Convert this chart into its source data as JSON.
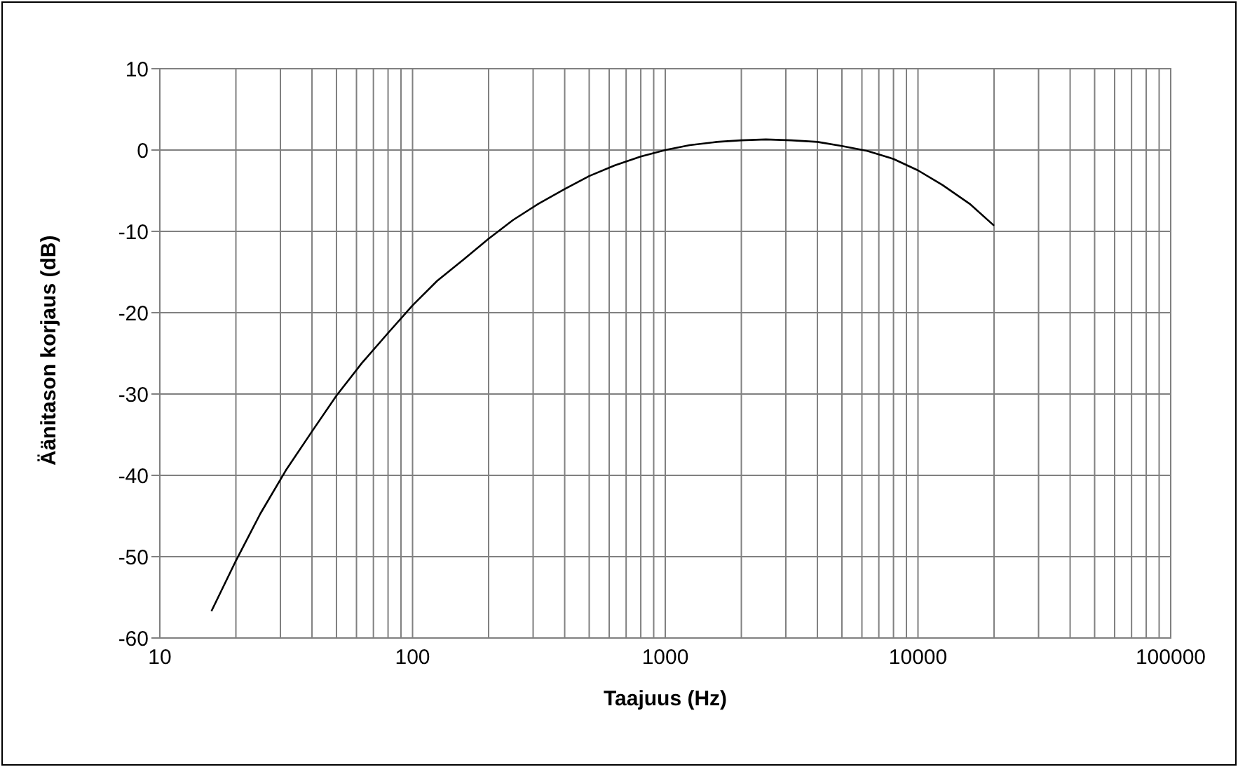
{
  "chart_data": {
    "type": "line",
    "xlabel": "Taajuus (Hz)",
    "ylabel": "Äänitason korjaus (dB)",
    "log": "x",
    "grid": true,
    "marker": "none",
    "line_style": "solid",
    "xlim": [
      10,
      100000
    ],
    "xticks": [
      10,
      {
        "value": 20,
        "label": null
      },
      {
        "value": 30,
        "label": null
      },
      {
        "value": 40,
        "label": null
      },
      {
        "value": 50,
        "label": null
      },
      {
        "value": 60,
        "label": null
      },
      {
        "value": 70,
        "label": null
      },
      {
        "value": 80,
        "label": null
      },
      {
        "value": 90,
        "label": null
      },
      100,
      {
        "value": 200,
        "label": null
      },
      {
        "value": 300,
        "label": null
      },
      {
        "value": 400,
        "label": null
      },
      {
        "value": 500,
        "label": null
      },
      {
        "value": 600,
        "label": null
      },
      {
        "value": 700,
        "label": null
      },
      {
        "value": 800,
        "label": null
      },
      {
        "value": 900,
        "label": null
      },
      1000,
      {
        "value": 2000,
        "label": null
      },
      {
        "value": 3000,
        "label": null
      },
      {
        "value": 4000,
        "label": null
      },
      {
        "value": 5000,
        "label": null
      },
      {
        "value": 6000,
        "label": null
      },
      {
        "value": 7000,
        "label": null
      },
      {
        "value": 8000,
        "label": null
      },
      {
        "value": 9000,
        "label": null
      },
      10000,
      {
        "value": 20000,
        "label": null
      },
      {
        "value": 30000,
        "label": null
      },
      {
        "value": 40000,
        "label": null
      },
      {
        "value": 50000,
        "label": null
      },
      {
        "value": 60000,
        "label": null
      },
      {
        "value": 70000,
        "label": null
      },
      {
        "value": 80000,
        "label": null
      },
      {
        "value": 90000,
        "label": null
      },
      100000
    ],
    "ylim": [
      -60,
      10
    ],
    "yticks": [
      -60,
      -50,
      -40,
      -30,
      -20,
      -10,
      0,
      10
    ],
    "x": [
      16,
      20,
      25,
      31.5,
      40,
      50,
      63,
      80,
      100,
      125,
      160,
      200,
      250,
      315,
      400,
      500,
      630,
      800,
      1000,
      1250,
      1600,
      2000,
      2500,
      3150,
      4000,
      5000,
      6300,
      8000,
      10000,
      12500,
      16000,
      20000
    ],
    "series": [
      {
        "color": "#000000",
        "values": [
          -56.7,
          -50.5,
          -44.7,
          -39.4,
          -34.6,
          -30.2,
          -26.2,
          -22.5,
          -19.1,
          -16.1,
          -13.4,
          -10.9,
          -8.6,
          -6.6,
          -4.8,
          -3.2,
          -1.9,
          -0.8,
          0,
          0.6,
          1.0,
          1.2,
          1.3,
          1.2,
          1.0,
          0.5,
          -0.1,
          -1.1,
          -2.5,
          -4.3,
          -6.6,
          -9.3
        ]
      }
    ]
  }
}
